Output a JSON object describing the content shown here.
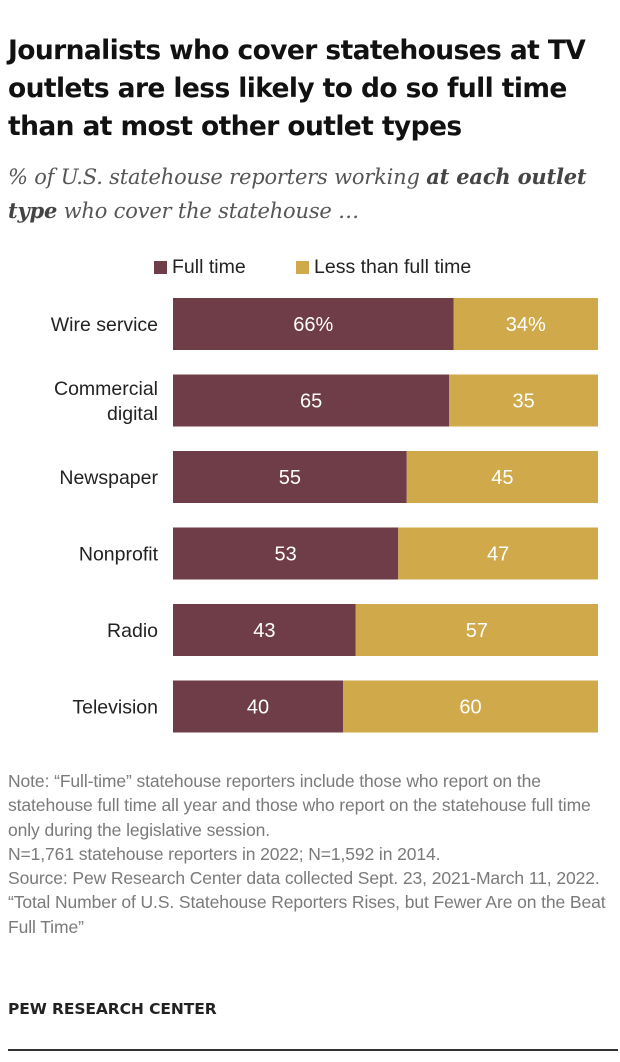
{
  "header": {
    "title": "Journalists who cover statehouses at TV outlets are less likely to do so full time than at most other outlet types",
    "subtitle_pre": "% of U.S. statehouse reporters working ",
    "subtitle_bold": "at each outlet type",
    "subtitle_post": " who cover the statehouse …"
  },
  "legend": {
    "full_time": "Full time",
    "less_than_full_time": "Less than full time"
  },
  "colors": {
    "full_time": "#6e3d47",
    "less_than_full_time": "#cfa94a"
  },
  "chart_data": {
    "type": "bar",
    "orientation": "horizontal",
    "stacked": true,
    "categories": [
      "Wire service",
      "Commercial digital",
      "Newspaper",
      "Nonprofit",
      "Radio",
      "Television"
    ],
    "category_lines": [
      [
        "Wire service"
      ],
      [
        "Commercial",
        "digital"
      ],
      [
        "Newspaper"
      ],
      [
        "Nonprofit"
      ],
      [
        "Radio"
      ],
      [
        "Television"
      ]
    ],
    "series": [
      {
        "name": "Full time",
        "values": [
          66,
          65,
          55,
          53,
          43,
          40
        ],
        "labels": [
          "66%",
          "65",
          "55",
          "53",
          "43",
          "40"
        ]
      },
      {
        "name": "Less than full time",
        "values": [
          34,
          35,
          45,
          47,
          57,
          60
        ],
        "labels": [
          "34%",
          "35",
          "45",
          "47",
          "57",
          "60"
        ]
      }
    ],
    "xlim": [
      0,
      100
    ],
    "grid": false,
    "legend_position": "top"
  },
  "footer": {
    "notes": [
      "Note: “Full-time” statehouse reporters include those who report on the statehouse full time all year and those who report on the statehouse full time only during the legislative session.",
      "N=1,761 statehouse reporters in 2022; N=1,592 in 2014.",
      "Source: Pew Research Center data collected Sept. 23, 2021-March 11, 2022.",
      "“Total Number of U.S. Statehouse Reporters Rises, but Fewer Are on the Beat Full Time”"
    ],
    "brand": "PEW RESEARCH CENTER"
  }
}
